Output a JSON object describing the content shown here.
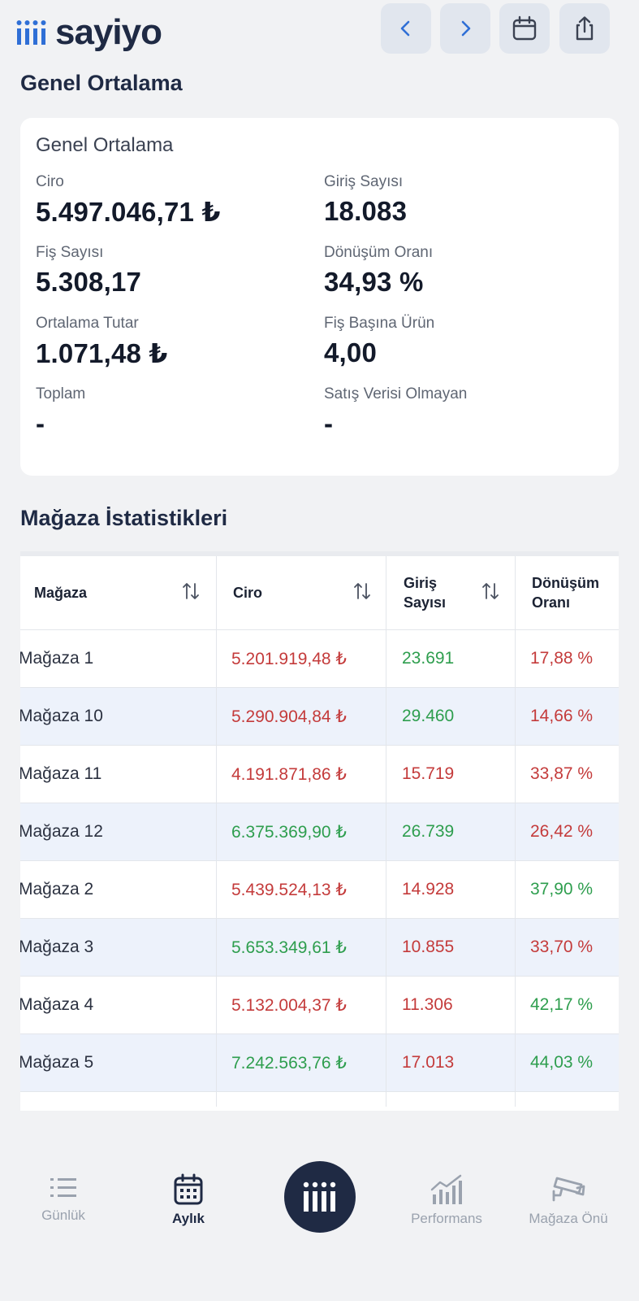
{
  "app": {
    "brand": "sayiyo",
    "accent": "#2f6fd6",
    "dark": "#1f2a44"
  },
  "header_icons": [
    "chevron-left-icon",
    "chevron-right-icon",
    "calendar-icon",
    "share-icon"
  ],
  "overview": {
    "section_title": "Genel Ortalama",
    "card_title": "Genel Ortalama",
    "metrics": {
      "ciro": {
        "label": "Ciro",
        "value": "5.497.046,71 ₺"
      },
      "giris": {
        "label": "Giriş Sayısı",
        "value": "18.083"
      },
      "fis": {
        "label": "Fiş Sayısı",
        "value": "5.308,17"
      },
      "donusum": {
        "label": "Dönüşüm Oranı",
        "value": "34,93 %"
      },
      "ortalama": {
        "label": "Ortalama Tutar",
        "value": "1.071,48 ₺"
      },
      "fis_basina": {
        "label": "Fiş Başına Ürün",
        "value": "4,00"
      },
      "toplam": {
        "label": "Toplam",
        "value": "-"
      },
      "satis_yok": {
        "label": "Satış Verisi Olmayan",
        "value": "-"
      }
    }
  },
  "stores": {
    "section_title": "Mağaza İstatistikleri",
    "columns": {
      "magaza": "Mağaza",
      "ciro": "Ciro",
      "giris_1": "Giriş",
      "giris_2": "Sayısı",
      "donusum_1": "Dönüşüm",
      "donusum_2": "Oranı"
    },
    "rows": [
      {
        "name": "Mağaza 1",
        "ciro": "5.201.919,48 ₺",
        "giris": "23.691",
        "donusum": "17,88 %"
      },
      {
        "name": "Mağaza 10",
        "ciro": "5.290.904,84 ₺",
        "giris": "29.460",
        "donusum": "14,66 %"
      },
      {
        "name": "Mağaza 11",
        "ciro": "4.191.871,86 ₺",
        "giris": "15.719",
        "donusum": "33,87 %"
      },
      {
        "name": "Mağaza 12",
        "ciro": "6.375.369,90 ₺",
        "giris": "26.739",
        "donusum": "26,42 %"
      },
      {
        "name": "Mağaza 2",
        "ciro": "5.439.524,13 ₺",
        "giris": "14.928",
        "donusum": "37,90 %"
      },
      {
        "name": "Mağaza 3",
        "ciro": "5.653.349,61 ₺",
        "giris": "10.855",
        "donusum": "33,70 %"
      },
      {
        "name": "Mağaza 4",
        "ciro": "5.132.004,37 ₺",
        "giris": "11.306",
        "donusum": "42,17 %"
      },
      {
        "name": "Mağaza 5",
        "ciro": "7.242.563,76 ₺",
        "giris": "17.013",
        "donusum": "44,03 %"
      }
    ],
    "status_colors": {
      "positive": "#2e9e4e",
      "negative": "#c43b3b"
    }
  },
  "bottom_nav": {
    "gunluk": "Günlük",
    "aylik": "Aylık",
    "performans": "Performans",
    "magaza_onu": "Mağaza Önü"
  }
}
